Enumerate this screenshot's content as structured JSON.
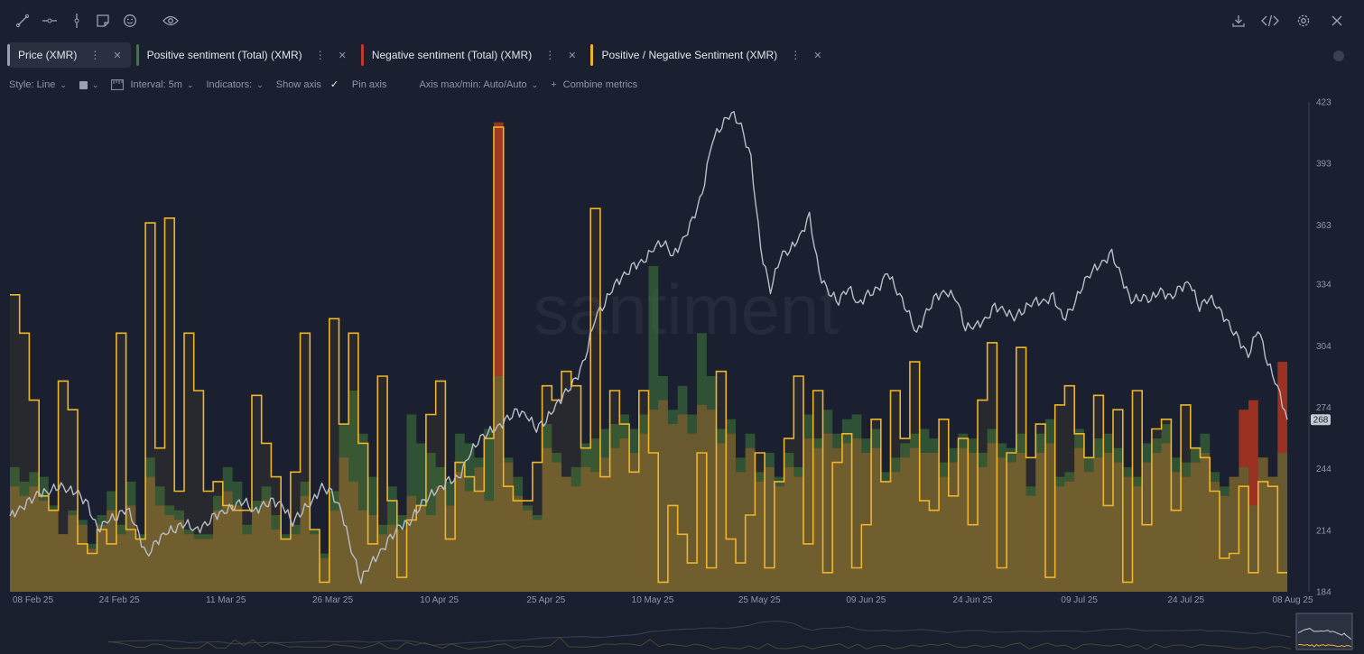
{
  "toolbar": {
    "left_icons": [
      "trend-line-icon",
      "horizontal-line-icon",
      "vertical-line-icon",
      "note-icon",
      "emoji-icon",
      "eye-icon"
    ],
    "right_icons": [
      "download-icon",
      "code-icon",
      "settings-icon",
      "close-icon"
    ]
  },
  "metrics": [
    {
      "label": "Price (XMR)",
      "color": "#9aa0ad",
      "active": true
    },
    {
      "label": "Positive sentiment (Total) (XMR)",
      "color": "#3f7a3c"
    },
    {
      "label": "Negative sentiment (Total) (XMR)",
      "color": "#c0392b"
    },
    {
      "label": "Positive / Negative Sentiment (XMR)",
      "color": "#f0b429"
    }
  ],
  "options": {
    "style": "Style: Line",
    "interval": "Interval: 5m",
    "indicators": "Indicators:",
    "show_axis": "Show axis",
    "pin_axis": "Pin axis",
    "axis_minmax": "Axis max/min: Auto/Auto",
    "combine": "Combine metrics"
  },
  "colors": {
    "background": "#1b2030",
    "price": "#b9bdc6",
    "positive": "#3f7a3c",
    "negative": "#b2351f",
    "ratio": "#f0b429"
  },
  "chart_data": {
    "type": "line",
    "watermark": "santiment",
    "x_ticks": [
      "08 Feb 25",
      "24 Feb 25",
      "11 Mar 25",
      "26 Mar 25",
      "10 Apr 25",
      "25 Apr 25",
      "10 May 25",
      "25 May 25",
      "09 Jun 25",
      "24 Jun 25",
      "09 Jul 25",
      "24 Jul 25",
      "08 Aug 25"
    ],
    "y_ticks": [
      423,
      393,
      363,
      334,
      304,
      274,
      244,
      214,
      184
    ],
    "ylim": [
      184,
      423
    ],
    "last_value_label": "268",
    "x_range": [
      "2025-02-08",
      "2025-08-08"
    ],
    "grid": false,
    "series": [
      {
        "name": "Price (XMR)",
        "kind": "line",
        "y": [
          221,
          224,
          228,
          232,
          233,
          236,
          234,
          232,
          226,
          214,
          219,
          221,
          225,
          215,
          201,
          208,
          213,
          215,
          218,
          214,
          216,
          221,
          223,
          226,
          229,
          223,
          226,
          228,
          226,
          218,
          224,
          228,
          235,
          232,
          223,
          205,
          190,
          198,
          203,
          210,
          216,
          218,
          226,
          231,
          234,
          238,
          239,
          250,
          258,
          262,
          264,
          268,
          272,
          270,
          264,
          268,
          275,
          281,
          287,
          298,
          318,
          325,
          334,
          338,
          343,
          345,
          352,
          355,
          348,
          355,
          365,
          378,
          404,
          412,
          418,
          411,
          395,
          351,
          331,
          348,
          351,
          357,
          367,
          339,
          330,
          326,
          333,
          324,
          329,
          331,
          340,
          331,
          322,
          310,
          320,
          328,
          330,
          328,
          313,
          314,
          316,
          323,
          321,
          318,
          322,
          326,
          325,
          328,
          317,
          323,
          334,
          341,
          344,
          349,
          337,
          326,
          328,
          327,
          331,
          327,
          332,
          335,
          323,
          328,
          322,
          314,
          307,
          299,
          313,
          296,
          284,
          268
        ]
      },
      {
        "name": "Positive / Negative Sentiment (XMR)",
        "kind": "step",
        "y": [
          0.62,
          0.54,
          0.4,
          0.2,
          0.17,
          0.44,
          0.38,
          0.1,
          0.08,
          0.13,
          0.1,
          0.54,
          0.13,
          0.11,
          0.77,
          0.3,
          0.78,
          0.21,
          0.54,
          0.42,
          0.21,
          0.23,
          0.18,
          0.17,
          0.17,
          0.41,
          0.31,
          0.24,
          0.11,
          0.25,
          0.54,
          0.13,
          0.02,
          0.57,
          0.35,
          0.54,
          0.31,
          0.1,
          0.45,
          0.19,
          0.03,
          0.15,
          0.18,
          0.37,
          0.44,
          0.11,
          0.27,
          0.24,
          0.21,
          0.32,
          0.97,
          0.22,
          0.19,
          0.19,
          0.27,
          0.43,
          0.4,
          0.46,
          0.43,
          0.3,
          0.8,
          0.24,
          0.42,
          0.35,
          0.25,
          0.42,
          0.29,
          0.02,
          0.18,
          0.12,
          0.06,
          0.29,
          0.05,
          0.46,
          0.11,
          0.06,
          0.16,
          0.29,
          0.05,
          0.23,
          0.32,
          0.45,
          0.1,
          0.42,
          0.04,
          0.27,
          0.33,
          0.05,
          0.14,
          0.36,
          0.23,
          0.42,
          0.32,
          0.48,
          0.19,
          0.17,
          0.36,
          0.2,
          0.32,
          0.14,
          0.4,
          0.52,
          0.05,
          0.29,
          0.51,
          0.28,
          0.35,
          0.03,
          0.39,
          0.43,
          0.33,
          0.28,
          0.41,
          0.18,
          0.38,
          0.02,
          0.42,
          0.14,
          0.34,
          0.36,
          0.17,
          0.39,
          0.3,
          0.28,
          0.21,
          0.07,
          0.08,
          0.22,
          0.04,
          0.23,
          0.22,
          0.04
        ]
      },
      {
        "name": "Positive sentiment (Total) (XMR)",
        "kind": "step-area",
        "y": [
          0.26,
          0.23,
          0.25,
          0.24,
          0.18,
          0.12,
          0.17,
          0.15,
          0.1,
          0.16,
          0.21,
          0.14,
          0.23,
          0.12,
          0.28,
          0.22,
          0.18,
          0.17,
          0.13,
          0.12,
          0.12,
          0.2,
          0.26,
          0.23,
          0.14,
          0.19,
          0.22,
          0.16,
          0.12,
          0.14,
          0.23,
          0.13,
          0.08,
          0.21,
          0.35,
          0.42,
          0.33,
          0.24,
          0.14,
          0.22,
          0.16,
          0.37,
          0.31,
          0.29,
          0.26,
          0.23,
          0.33,
          0.31,
          0.28,
          0.34,
          0.45,
          0.28,
          0.24,
          0.18,
          0.16,
          0.35,
          0.29,
          0.24,
          0.26,
          0.31,
          0.32,
          0.34,
          0.35,
          0.37,
          0.34,
          0.37,
          0.68,
          0.45,
          0.38,
          0.43,
          0.37,
          0.54,
          0.45,
          0.34,
          0.36,
          0.28,
          0.33,
          0.25,
          0.29,
          0.24,
          0.29,
          0.26,
          0.37,
          0.32,
          0.38,
          0.33,
          0.36,
          0.37,
          0.32,
          0.34,
          0.25,
          0.28,
          0.31,
          0.33,
          0.34,
          0.32,
          0.27,
          0.3,
          0.33,
          0.32,
          0.29,
          0.34,
          0.31,
          0.3,
          0.33,
          0.22,
          0.33,
          0.36,
          0.24,
          0.25,
          0.34,
          0.28,
          0.32,
          0.33,
          0.3,
          0.26,
          0.24,
          0.31,
          0.32,
          0.35,
          0.28,
          0.27,
          0.3,
          0.33,
          0.25,
          0.22,
          0.24,
          0.26,
          0.18,
          0.28,
          0.24,
          0.29
        ]
      },
      {
        "name": "Negative sentiment (Total) (XMR)",
        "kind": "step-area",
        "y": [
          0.22,
          0.2,
          0.22,
          0.19,
          0.17,
          0.12,
          0.16,
          0.14,
          0.09,
          0.14,
          0.17,
          0.12,
          0.18,
          0.11,
          0.24,
          0.18,
          0.16,
          0.15,
          0.12,
          0.11,
          0.11,
          0.17,
          0.21,
          0.18,
          0.12,
          0.17,
          0.19,
          0.13,
          0.11,
          0.12,
          0.2,
          0.12,
          0.07,
          0.17,
          0.28,
          0.23,
          0.17,
          0.16,
          0.12,
          0.14,
          0.13,
          0.2,
          0.18,
          0.16,
          0.22,
          0.18,
          0.25,
          0.21,
          0.26,
          0.19,
          0.98,
          0.27,
          0.2,
          0.17,
          0.15,
          0.3,
          0.27,
          0.24,
          0.22,
          0.26,
          0.25,
          0.28,
          0.3,
          0.32,
          0.29,
          0.33,
          0.38,
          0.4,
          0.35,
          0.37,
          0.33,
          0.39,
          0.38,
          0.31,
          0.33,
          0.25,
          0.3,
          0.23,
          0.26,
          0.22,
          0.26,
          0.24,
          0.32,
          0.3,
          0.33,
          0.3,
          0.31,
          0.32,
          0.29,
          0.3,
          0.23,
          0.25,
          0.28,
          0.3,
          0.29,
          0.29,
          0.24,
          0.27,
          0.3,
          0.29,
          0.26,
          0.31,
          0.28,
          0.27,
          0.29,
          0.2,
          0.29,
          0.31,
          0.22,
          0.23,
          0.3,
          0.25,
          0.28,
          0.29,
          0.27,
          0.24,
          0.22,
          0.27,
          0.29,
          0.31,
          0.25,
          0.24,
          0.27,
          0.29,
          0.23,
          0.2,
          0.24,
          0.38,
          0.4,
          0.28,
          0.24,
          0.48
        ]
      }
    ]
  }
}
